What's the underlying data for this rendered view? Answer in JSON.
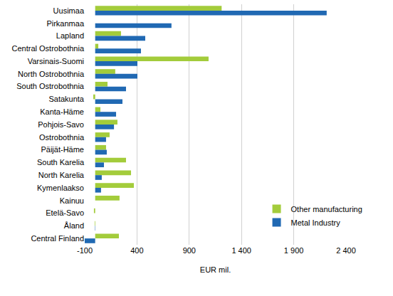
{
  "chart_data": {
    "type": "bar",
    "orientation": "horizontal",
    "x_label": "EUR mil.",
    "categories": [
      "Uusimaa",
      "Pirkanmaa",
      "Lapland",
      "Central Ostrobothnia",
      "Varsinais-Suomi",
      "North Ostrobothnia",
      "South Ostrobothnia",
      "Satakunta",
      "Kanta-Häme",
      "Pohjois-Savo",
      "Ostrobothnia",
      "Päijät-Häme",
      "South Karelia",
      "North Karelia",
      "Kymenlaakso",
      "Kainuu",
      "Etelä-Savo",
      "Åland",
      "Central Finland"
    ],
    "series": [
      {
        "name": "Other manufacturing",
        "color": "#a3cc3b",
        "values": [
          1210,
          0,
          247,
          30,
          1085,
          192,
          118,
          -18,
          50,
          213,
          138,
          104,
          295,
          343,
          370,
          233,
          -12,
          -5,
          227
        ]
      },
      {
        "name": "Metal Industry",
        "color": "#2069b3",
        "values": [
          2215,
          730,
          479,
          438,
          404,
          404,
          295,
          261,
          200,
          180,
          104,
          111,
          84,
          63,
          56,
          0,
          0,
          -3,
          -100
        ]
      }
    ],
    "xlim": [
      -100,
      2400
    ],
    "xticks": [
      -100,
      400,
      900,
      {
        "value": 1400,
        "label": "1 400"
      },
      {
        "value": 1900,
        "label": "1 900"
      },
      {
        "value": 2400,
        "label": "2 400"
      }
    ],
    "grid": true,
    "legend": "lower right"
  }
}
